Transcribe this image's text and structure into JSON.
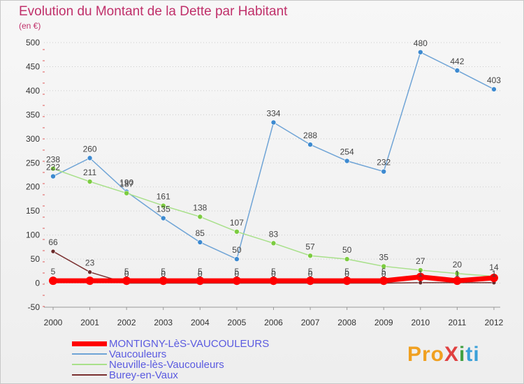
{
  "header": {
    "title": "Evolution du Montant de la Dette par Habitant",
    "subtitle": "(en €)"
  },
  "logo": {
    "text": "ProXiti",
    "parts": [
      "Pro",
      "X",
      "i",
      "ti"
    ]
  },
  "colors": {
    "title": "#c0306a",
    "axis_text": "#333333",
    "grid": "#cccccc",
    "legend_text": "#5a5ae0"
  },
  "chart_data": {
    "type": "line",
    "title": "Evolution du Montant de la Dette par Habitant",
    "ylabel": "(en €)",
    "xlabel": "",
    "categories": [
      "2000",
      "2001",
      "2002",
      "2003",
      "2004",
      "2005",
      "2006",
      "2007",
      "2008",
      "2009",
      "2010",
      "2011",
      "2012"
    ],
    "ylim": [
      -50,
      500
    ],
    "yticks": [
      -50,
      0,
      50,
      100,
      150,
      200,
      250,
      300,
      350,
      400,
      450,
      500
    ],
    "ytick_labels": [
      "-50",
      "0",
      "50",
      "100",
      "150",
      "200",
      "250",
      "300",
      "350",
      "400",
      "450",
      "500"
    ],
    "grid": "horizontal",
    "legend_position": "bottom-left",
    "series": [
      {
        "name": "MONTIGNY-LèS-VAUCOULEURS",
        "values": [
          5,
          5,
          5,
          5,
          5,
          5,
          5,
          5,
          5,
          5,
          13,
          5,
          11
        ],
        "labels": [
          "5",
          "",
          "5",
          "5",
          "5",
          "5",
          "5",
          "5",
          "5",
          "5",
          "",
          "",
          ""
        ],
        "color": "#ff0000",
        "line_width": 7,
        "marker_radius": 6
      },
      {
        "name": "Vaucouleurs",
        "values": [
          222,
          260,
          190,
          135,
          85,
          50,
          334,
          288,
          254,
          232,
          480,
          442,
          403
        ],
        "labels": [
          "222",
          "260",
          "190",
          "135",
          "85",
          "50",
          "334",
          "288",
          "254",
          "232",
          "480",
          "442",
          "403"
        ],
        "color": "#6fa4d6",
        "marker": "#3d8ad0",
        "line_width": 1.5,
        "marker_radius": 3.5
      },
      {
        "name": "Neuville-lès-Vaucouleurs",
        "values": [
          238,
          211,
          187,
          161,
          138,
          107,
          83,
          57,
          50,
          35,
          27,
          20,
          14
        ],
        "labels": [
          "238",
          "211",
          "187",
          "161",
          "138",
          "107",
          "83",
          "57",
          "50",
          "35",
          "27",
          "20",
          "14"
        ],
        "color": "#a8e08a",
        "marker": "#7ccc40",
        "line_width": 1.5,
        "marker_radius": 3.5
      },
      {
        "name": "Burey-en-Vaux",
        "values": [
          66,
          23,
          0,
          0,
          0,
          0,
          0,
          0,
          0,
          0,
          1,
          1,
          1
        ],
        "labels": [
          "66",
          "23",
          "0",
          "0",
          "0",
          "0",
          "0",
          "0",
          "0",
          "0",
          "1",
          "1",
          "1"
        ],
        "color": "#7a3030",
        "marker": "#6a2a2a",
        "line_width": 1.5,
        "marker_radius": 3
      }
    ]
  }
}
